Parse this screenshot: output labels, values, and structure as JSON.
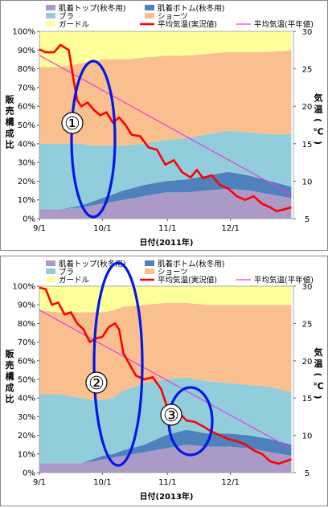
{
  "colors": {
    "skin_top": "#ab9ac8",
    "skin_bottom": "#4f81bd",
    "bra": "#92cddc",
    "shorts": "#fabf8f",
    "girdle": "#ffff99",
    "actual_temp": "#ff0000",
    "normal_temp": "#e040e0",
    "marker": "#0018e8"
  },
  "chart_data": [
    {
      "type": "area",
      "stacked": true,
      "legend": {
        "entries": [
          "肌着トップ(秋冬用)",
          "肌着ボトム(秋冬用)",
          "ブラ",
          "ショーツ",
          "ガードル",
          "平均気温(実況値)",
          "平均気温(平年値)"
        ],
        "placement": "top"
      },
      "ylabel": "販売構成比",
      "y2label": "気温(℃)",
      "xlabel": "日付(2011年)",
      "x_ticks": [
        "9/1",
        "10/1",
        "11/1",
        "12/1"
      ],
      "y_ticks": [
        "0%",
        "10%",
        "20%",
        "30%",
        "40%",
        "50%",
        "60%",
        "70%",
        "80%",
        "90%",
        "100%"
      ],
      "y2_ticks": [
        "5",
        "10",
        "15",
        "20",
        "25",
        "30"
      ],
      "ylim": [
        0,
        100
      ],
      "y2lim": [
        5,
        30
      ],
      "x_days": [
        0,
        10,
        20,
        25,
        30,
        35,
        40,
        50,
        60,
        70,
        80,
        90,
        100,
        110,
        120
      ],
      "series": [
        {
          "name": "肌着トップ(秋冬用)",
          "values": [
            5,
            5,
            6,
            7,
            8,
            9,
            10,
            12,
            14,
            14,
            15,
            16,
            15,
            13,
            11
          ]
        },
        {
          "name": "肌着ボトム(秋冬用)",
          "values": [
            0,
            0,
            1,
            2,
            3,
            4,
            5,
            6,
            6,
            7,
            8,
            9,
            8,
            7,
            6
          ]
        },
        {
          "name": "ブラ",
          "values": [
            35,
            35,
            33,
            30,
            28,
            26,
            24,
            22,
            22,
            22,
            22,
            22,
            23,
            25,
            28
          ]
        },
        {
          "name": "ショーツ",
          "values": [
            41,
            41,
            43,
            45,
            46,
            46,
            46,
            46,
            45,
            44,
            43,
            42,
            43,
            44,
            45
          ]
        },
        {
          "name": "ガードル",
          "values": [
            19,
            19,
            17,
            16,
            15,
            15,
            15,
            14,
            13,
            13,
            12,
            11,
            11,
            11,
            10
          ]
        }
      ],
      "temp_actual": {
        "name": "平均気温(実況値)",
        "x": [
          0,
          3,
          7,
          10,
          14,
          16,
          18,
          20,
          23,
          26,
          29,
          32,
          35,
          38,
          41,
          44,
          48,
          52,
          56,
          60,
          64,
          68,
          72,
          75,
          78,
          82,
          86,
          90,
          94,
          98,
          102,
          106,
          110,
          113,
          116,
          120
        ],
        "y": [
          27.6,
          27.2,
          27.2,
          28.2,
          27.5,
          24.0,
          20.8,
          20.0,
          20.5,
          19.5,
          18.8,
          19.2,
          17.8,
          18.5,
          17.5,
          16.2,
          16.0,
          14.5,
          14.2,
          12.2,
          12.8,
          11.2,
          10.5,
          11.5,
          10.4,
          10.8,
          9.5,
          9.0,
          8.0,
          7.5,
          8.0,
          7.0,
          6.5,
          6.0,
          6.2,
          6.5
        ]
      },
      "temp_normal": {
        "name": "平均気温(平年値)",
        "x": [
          0,
          120
        ],
        "y": [
          26.8,
          8.2
        ]
      },
      "annotations": [
        {
          "label": "①"
        }
      ]
    },
    {
      "type": "area",
      "stacked": true,
      "legend": {
        "entries": [
          "肌着トップ(秋冬用)",
          "肌着ボトム(秋冬用)",
          "ブラ",
          "ショーツ",
          "ガードル",
          "平均気温(実況値)",
          "平均気温(平年値)"
        ],
        "placement": "top"
      },
      "ylabel": "販売構成比",
      "y2label": "気温(℃)",
      "xlabel": "日付(2013年)",
      "x_ticks": [
        "9/1",
        "10/1",
        "11/1",
        "12/1"
      ],
      "y_ticks": [
        "0%",
        "10%",
        "20%",
        "30%",
        "40%",
        "50%",
        "60%",
        "70%",
        "80%",
        "90%",
        "100%"
      ],
      "y2_ticks": [
        "5",
        "10",
        "15",
        "20",
        "25",
        "30"
      ],
      "ylim": [
        0,
        100
      ],
      "y2lim": [
        5,
        30
      ],
      "x_days": [
        0,
        10,
        20,
        25,
        30,
        35,
        40,
        50,
        60,
        70,
        80,
        90,
        100,
        110,
        120
      ],
      "series": [
        {
          "name": "肌着トップ(秋冬用)",
          "values": [
            5,
            5,
            5,
            6,
            7,
            8,
            9,
            11,
            13,
            15,
            14,
            14,
            13,
            11,
            9
          ]
        },
        {
          "name": "肌着ボトム(秋冬用)",
          "values": [
            0,
            0,
            0,
            1,
            2,
            2,
            3,
            4,
            7,
            8,
            7,
            7,
            7,
            7,
            6
          ]
        },
        {
          "name": "ブラ",
          "values": [
            37,
            37,
            35,
            32,
            30,
            30,
            32,
            33,
            30,
            28,
            28,
            27,
            27,
            28,
            28
          ]
        },
        {
          "name": "ショーツ",
          "values": [
            45,
            44,
            46,
            47,
            47,
            47,
            45,
            42,
            41,
            40,
            41,
            42,
            43,
            44,
            47
          ]
        },
        {
          "name": "ガードル",
          "values": [
            13,
            14,
            14,
            14,
            14,
            13,
            11,
            10,
            9,
            9,
            10,
            10,
            10,
            10,
            10
          ]
        }
      ],
      "temp_actual": {
        "name": "平均気温(実況値)",
        "x": [
          0,
          3,
          6,
          9,
          12,
          15,
          18,
          21,
          24,
          27,
          30,
          33,
          36,
          38,
          40,
          43,
          46,
          50,
          54,
          58,
          62,
          66,
          70,
          74,
          78,
          82,
          86,
          90,
          94,
          98,
          102,
          106,
          110,
          114,
          117,
          120
        ],
        "y": [
          29.8,
          29.6,
          27.5,
          27.8,
          26.2,
          26.5,
          25.0,
          24.2,
          22.5,
          23.0,
          23.2,
          24.5,
          25.0,
          24.2,
          21.0,
          19.5,
          18.0,
          17.5,
          17.8,
          16.2,
          12.8,
          13.2,
          12.0,
          11.8,
          11.2,
          10.5,
          10.0,
          9.5,
          9.2,
          8.8,
          8.0,
          7.5,
          6.5,
          6.2,
          6.5,
          6.8
        ]
      },
      "temp_normal": {
        "name": "平均気温(平年値)",
        "x": [
          0,
          120
        ],
        "y": [
          26.8,
          8.2
        ]
      },
      "annotations": [
        {
          "label": "②"
        },
        {
          "label": "③"
        }
      ]
    }
  ]
}
